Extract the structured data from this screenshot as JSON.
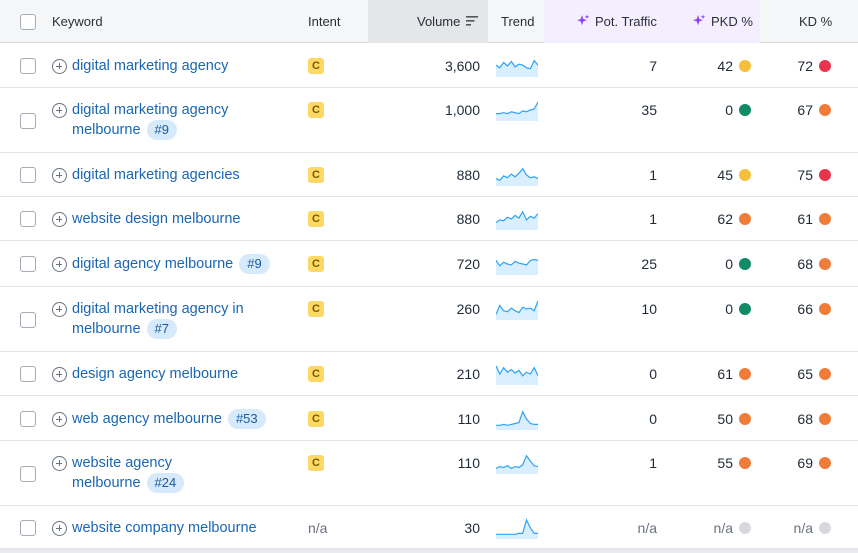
{
  "header": {
    "keyword": "Keyword",
    "intent": "Intent",
    "volume": "Volume",
    "trend": "Trend",
    "pot_traffic": "Pot. Traffic",
    "pkd": "PKD %",
    "kd": "KD %"
  },
  "colors": {
    "link": "#1a66b3",
    "yellow": "#f5bf3a",
    "orange": "#f07c3a",
    "red": "#e8344d",
    "green": "#118a66",
    "gray": "#d6d8dd"
  },
  "rows": [
    {
      "kw": [
        "digital marketing agency"
      ],
      "rank": "",
      "intent": "C",
      "volume": "3,600",
      "trend": [
        0.55,
        0.4,
        0.7,
        0.5,
        0.75,
        0.45,
        0.6,
        0.55,
        0.4,
        0.35,
        0.8,
        0.55
      ],
      "pot": "7",
      "pkd": "42",
      "pkd_color": "yellow",
      "kd": "72",
      "kd_color": "red"
    },
    {
      "kw": [
        "digital marketing agency",
        "melbourne"
      ],
      "rank": "#9",
      "intent": "C",
      "volume": "1,000",
      "trend": [
        0.3,
        0.3,
        0.35,
        0.3,
        0.4,
        0.35,
        0.3,
        0.45,
        0.4,
        0.5,
        0.55,
        0.95
      ],
      "pot": "35",
      "pkd": "0",
      "pkd_color": "green",
      "kd": "67",
      "kd_color": "orange"
    },
    {
      "kw": [
        "digital marketing agencies"
      ],
      "rank": "",
      "intent": "C",
      "volume": "880",
      "trend": [
        0.3,
        0.2,
        0.45,
        0.35,
        0.55,
        0.4,
        0.6,
        0.85,
        0.5,
        0.35,
        0.4,
        0.3
      ],
      "pot": "1",
      "pkd": "45",
      "pkd_color": "yellow",
      "kd": "75",
      "kd_color": "red"
    },
    {
      "kw": [
        "website design melbourne"
      ],
      "rank": "",
      "intent": "C",
      "volume": "880",
      "trend": [
        0.3,
        0.45,
        0.4,
        0.6,
        0.5,
        0.7,
        0.55,
        0.9,
        0.45,
        0.65,
        0.55,
        0.8
      ],
      "pot": "1",
      "pkd": "62",
      "pkd_color": "orange",
      "kd": "61",
      "kd_color": "orange"
    },
    {
      "kw": [
        "digital agency melbourne"
      ],
      "rank": "#9",
      "intent": "C",
      "volume": "720",
      "trend": [
        0.7,
        0.4,
        0.6,
        0.5,
        0.45,
        0.65,
        0.55,
        0.5,
        0.45,
        0.7,
        0.75,
        0.7
      ],
      "pot": "25",
      "pkd": "0",
      "pkd_color": "green",
      "kd": "68",
      "kd_color": "orange"
    },
    {
      "kw": [
        "digital marketing agency in",
        "melbourne"
      ],
      "rank": "#7",
      "intent": "C",
      "volume": "260",
      "trend": [
        0.2,
        0.7,
        0.4,
        0.35,
        0.55,
        0.4,
        0.3,
        0.6,
        0.5,
        0.55,
        0.4,
        0.95
      ],
      "pot": "10",
      "pkd": "0",
      "pkd_color": "green",
      "kd": "66",
      "kd_color": "orange"
    },
    {
      "kw": [
        "design agency melbourne"
      ],
      "rank": "",
      "intent": "C",
      "volume": "210",
      "trend": [
        0.95,
        0.5,
        0.85,
        0.6,
        0.75,
        0.55,
        0.7,
        0.4,
        0.6,
        0.5,
        0.85,
        0.4
      ],
      "pot": "0",
      "pkd": "61",
      "pkd_color": "orange",
      "kd": "65",
      "kd_color": "orange"
    },
    {
      "kw": [
        "web agency melbourne"
      ],
      "rank": "#53",
      "intent": "C",
      "volume": "110",
      "trend": [
        0.15,
        0.15,
        0.2,
        0.15,
        0.2,
        0.25,
        0.3,
        0.9,
        0.5,
        0.25,
        0.2,
        0.2
      ],
      "pot": "0",
      "pkd": "50",
      "pkd_color": "orange",
      "kd": "68",
      "kd_color": "orange"
    },
    {
      "kw": [
        "website agency",
        "melbourne"
      ],
      "rank": "#24",
      "intent": "C",
      "volume": "110",
      "trend": [
        0.2,
        0.3,
        0.25,
        0.35,
        0.2,
        0.3,
        0.25,
        0.4,
        0.9,
        0.6,
        0.35,
        0.3
      ],
      "pot": "1",
      "pkd": "55",
      "pkd_color": "orange",
      "kd": "69",
      "kd_color": "orange"
    },
    {
      "kw": [
        "website company melbourne"
      ],
      "rank": "",
      "intent": "n/a",
      "volume": "30",
      "trend": [
        0.15,
        0.15,
        0.15,
        0.15,
        0.15,
        0.15,
        0.2,
        0.2,
        0.95,
        0.5,
        0.2,
        0.2
      ],
      "pot": "n/a",
      "pkd": "n/a",
      "pkd_color": "gray",
      "kd": "n/a",
      "kd_color": "gray"
    }
  ]
}
